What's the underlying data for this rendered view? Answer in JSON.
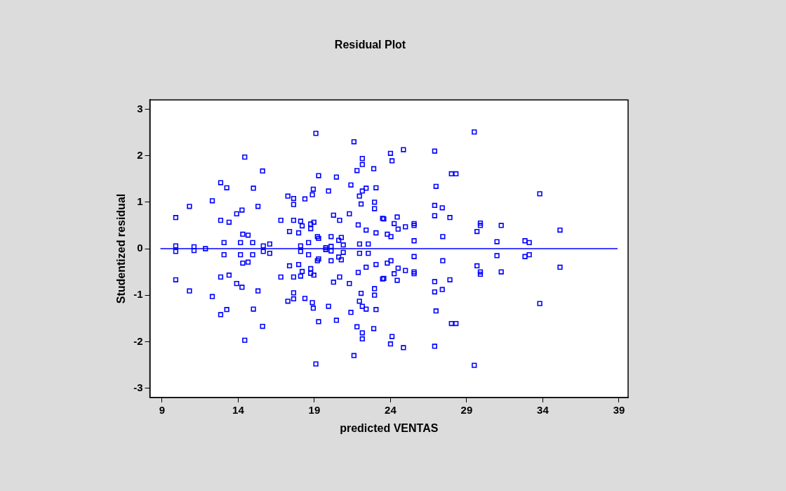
{
  "chart_data": {
    "type": "scatter",
    "title": "Residual Plot",
    "xlabel": "predicted VENTAS",
    "ylabel": "Studentized residual",
    "marker": "square",
    "grid": false,
    "legend": false,
    "xlim": [
      8.2,
      39.6
    ],
    "xticks": [
      9,
      14,
      19,
      24,
      29,
      34,
      39
    ],
    "ylim": [
      -3.2,
      3.2
    ],
    "yticks": [
      -3,
      -2,
      -1,
      0,
      1,
      2,
      3
    ],
    "ref_lines": [
      {
        "axis": "y",
        "value": 0,
        "color": "#0000ff"
      }
    ],
    "series": [
      {
        "color": "#0000ff",
        "x": [
          14.43,
          15.6,
          12.85,
          13.25,
          15.0,
          12.3,
          10.8,
          15.3,
          9.9,
          14.25,
          13.9,
          12.85,
          13.4,
          14.3,
          14.65,
          13.07,
          14.15,
          14.95,
          9.9,
          11.1,
          15.65,
          16.07,
          17.26,
          17.64,
          17.64,
          18.38,
          16.8,
          17.64,
          18.1,
          18.2,
          17.37,
          17.97,
          18.1,
          19.1,
          21.6,
          24.0,
          24.85,
          24.1,
          26.9,
          22.15,
          22.15,
          21.8,
          22.9,
          19.28,
          20.45,
          28.0,
          28.3,
          21.4,
          18.93,
          18.87,
          19.93,
          22.15,
          22.4,
          21.96,
          23.05,
          22.07,
          22.95,
          22.95,
          26.99,
          26.9,
          26.9,
          27.4,
          27.9,
          20.26,
          20.66,
          21.3,
          21.88,
          22.4,
          23.05,
          23.48,
          23.56,
          24.44,
          24.24,
          24.5,
          24.98,
          25.55,
          25.55,
          23.79,
          24.03,
          25.55,
          27.43,
          18.76,
          18.76,
          18.97,
          19.2,
          19.28,
          20.1,
          20.77,
          20.6,
          18.62,
          19.75,
          20.1,
          20.9,
          21.97,
          22.54,
          29.5,
          33.8,
          29.9,
          29.9,
          29.68,
          31.27,
          35.13,
          30.99,
          32.83,
          33.11,
          14.43,
          15.6,
          12.85,
          13.25,
          15.0,
          12.3,
          10.8,
          15.3,
          9.9,
          14.25,
          13.9,
          12.85,
          13.4,
          14.3,
          14.65,
          13.07,
          14.15,
          14.95,
          9.9,
          11.1,
          15.65,
          16.07,
          17.26,
          17.64,
          17.64,
          18.38,
          16.8,
          17.64,
          18.1,
          18.2,
          17.37,
          17.97,
          18.1,
          19.1,
          21.6,
          24.0,
          24.85,
          24.1,
          26.9,
          22.15,
          22.15,
          21.8,
          22.9,
          19.28,
          20.45,
          28.0,
          28.3,
          21.4,
          18.93,
          18.87,
          19.93,
          22.15,
          22.4,
          21.96,
          23.05,
          22.07,
          22.95,
          22.95,
          26.99,
          26.9,
          26.9,
          27.4,
          27.9,
          20.26,
          20.66,
          21.3,
          21.88,
          22.4,
          23.05,
          23.48,
          23.56,
          24.44,
          24.24,
          24.5,
          24.98,
          25.55,
          25.55,
          23.79,
          24.03,
          25.55,
          27.43,
          18.76,
          18.76,
          18.97,
          19.2,
          19.28,
          20.1,
          20.77,
          20.6,
          18.62,
          19.75,
          20.1,
          20.9,
          21.97,
          22.54,
          29.5,
          33.8,
          29.9,
          29.9,
          29.68,
          31.27,
          35.13,
          30.99,
          32.83,
          33.11,
          11.85
        ],
        "values": [
          1.97,
          1.67,
          1.42,
          1.31,
          1.3,
          1.03,
          0.91,
          0.91,
          0.67,
          0.83,
          0.75,
          0.61,
          0.57,
          0.31,
          0.29,
          0.13,
          0.13,
          0.13,
          0.06,
          0.04,
          0.06,
          0.1,
          1.13,
          1.08,
          0.95,
          1.07,
          0.61,
          0.61,
          0.59,
          0.49,
          0.37,
          0.34,
          0.06,
          2.48,
          2.3,
          2.05,
          2.13,
          1.89,
          2.1,
          1.94,
          1.81,
          1.68,
          1.72,
          1.57,
          1.54,
          1.61,
          1.61,
          1.37,
          1.28,
          1.16,
          1.24,
          1.24,
          1.3,
          1.13,
          1.31,
          0.96,
          1.0,
          0.86,
          1.34,
          0.93,
          0.71,
          0.88,
          0.67,
          0.72,
          0.61,
          0.75,
          0.51,
          0.4,
          0.34,
          0.65,
          0.64,
          0.68,
          0.54,
          0.42,
          0.47,
          0.54,
          0.5,
          0.31,
          0.26,
          0.17,
          0.26,
          0.53,
          0.43,
          0.57,
          0.26,
          0.22,
          0.26,
          0.24,
          0.18,
          0.13,
          0.02,
          0.05,
          0.08,
          0.1,
          0.1,
          2.51,
          1.18,
          0.55,
          0.5,
          0.37,
          0.5,
          0.4,
          0.15,
          0.17,
          0.13,
          -1.97,
          -1.67,
          -1.42,
          -1.31,
          -1.3,
          -1.03,
          -0.91,
          -0.91,
          -0.67,
          -0.83,
          -0.75,
          -0.61,
          -0.57,
          -0.31,
          -0.29,
          -0.13,
          -0.13,
          -0.13,
          -0.06,
          -0.04,
          -0.06,
          -0.1,
          -1.13,
          -1.08,
          -0.95,
          -1.07,
          -0.61,
          -0.61,
          -0.59,
          -0.49,
          -0.37,
          -0.34,
          -0.06,
          -2.48,
          -2.3,
          -2.05,
          -2.13,
          -1.89,
          -2.1,
          -1.94,
          -1.81,
          -1.68,
          -1.72,
          -1.57,
          -1.54,
          -1.61,
          -1.61,
          -1.37,
          -1.28,
          -1.16,
          -1.24,
          -1.24,
          -1.3,
          -1.13,
          -1.31,
          -0.96,
          -1.0,
          -0.86,
          -1.34,
          -0.93,
          -0.71,
          -0.88,
          -0.67,
          -0.72,
          -0.61,
          -0.75,
          -0.51,
          -0.4,
          -0.34,
          -0.65,
          -0.64,
          -0.68,
          -0.54,
          -0.42,
          -0.47,
          -0.54,
          -0.5,
          -0.31,
          -0.26,
          -0.17,
          -0.26,
          -0.53,
          -0.43,
          -0.57,
          -0.26,
          -0.22,
          -0.26,
          -0.24,
          -0.18,
          -0.13,
          -0.02,
          -0.05,
          -0.08,
          -0.1,
          -0.1,
          -2.51,
          -1.18,
          -0.55,
          -0.5,
          -0.37,
          -0.5,
          -0.4,
          -0.15,
          -0.17,
          -0.13,
          0
        ]
      }
    ]
  }
}
